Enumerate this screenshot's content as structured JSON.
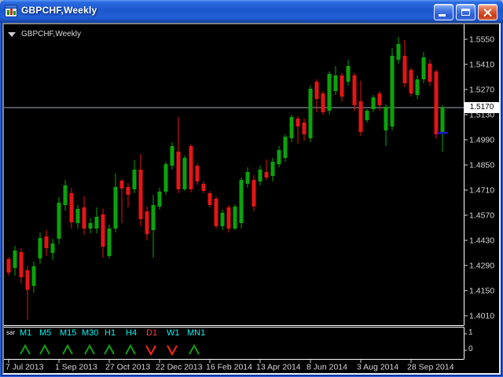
{
  "window": {
    "title": "GBPCHF,Weekly",
    "controls": [
      {
        "name": "minimize"
      },
      {
        "name": "maximize"
      },
      {
        "name": "close"
      }
    ]
  },
  "chart": {
    "label": "GBPCHF,Weekly",
    "current_price_label": "1.5170"
  },
  "indicator": {
    "label": "sar",
    "scale_top": "1",
    "scale_bottom": "0",
    "items": [
      {
        "label": "M1",
        "signal": "up"
      },
      {
        "label": "M5",
        "signal": "up"
      },
      {
        "label": "M15",
        "signal": "up"
      },
      {
        "label": "M30",
        "signal": "up"
      },
      {
        "label": "H1",
        "signal": "up"
      },
      {
        "label": "H4",
        "signal": "up"
      },
      {
        "label": "D1",
        "signal": "down",
        "label_color": "#ff3c3c"
      },
      {
        "label": "W1",
        "signal": "down"
      },
      {
        "label": "MN1",
        "signal": "up"
      }
    ]
  },
  "colors": {
    "bull": "#0aa30a",
    "bear": "#e41515",
    "arrow_up": "#149b14",
    "arrow_down": "#ff2424",
    "tf_label": "#00f2f2",
    "axis_text": "#d6d6d6",
    "frame": "#ffffff",
    "price_line": "#9fa8b4",
    "background": "#000000",
    "current_price_bg": "#ffffff",
    "titlebar_blue": "#1c57cc",
    "close_button_red": "#c63c16"
  },
  "chart_data": {
    "type": "candlestick",
    "title": "GBPCHF Weekly",
    "symbol": "GBPCHF",
    "period": "Weekly",
    "current_price": 1.517,
    "visible_price_range": [
      1.396,
      1.563
    ],
    "y_tick_step": 0.014,
    "y_ticks": [
      "1.5550",
      "1.5410",
      "1.5270",
      "1.5130",
      "1.4990",
      "1.4850",
      "1.4710",
      "1.4570",
      "1.4430",
      "1.4290",
      "1.4150",
      "1.4010"
    ],
    "x_tick_dates": [
      "7 Jul 2013",
      "1 Sep 2013",
      "27 Oct 2013",
      "22 Dec 2013",
      "16 Feb 2014",
      "13 Apr 2014",
      "8 Jun 2014",
      "3 Aug 2014",
      "28 Sep 2014"
    ],
    "indicator_pane": {
      "name": "sar",
      "scale": [
        1,
        0
      ],
      "signals": [
        "up",
        "up",
        "up",
        "up",
        "up",
        "up",
        "down",
        "down",
        "up"
      ]
    },
    "marker": {
      "type": "dash",
      "color": "#1717d1",
      "price": 1.5029
    },
    "candles": [
      [
        1.4325,
        1.4338,
        1.4233,
        1.4251
      ],
      [
        1.4277,
        1.4399,
        1.4233,
        1.4373
      ],
      [
        1.4364,
        1.4386,
        1.4189,
        1.4224
      ],
      [
        1.4264,
        1.4286,
        1.3988,
        1.4154
      ],
      [
        1.4176,
        1.4312,
        1.4137,
        1.4286
      ],
      [
        1.4329,
        1.4474,
        1.4299,
        1.4443
      ],
      [
        1.4452,
        1.4487,
        1.4343,
        1.4386
      ],
      [
        1.436,
        1.4439,
        1.4321,
        1.4413
      ],
      [
        1.4439,
        1.4671,
        1.4408,
        1.464
      ],
      [
        1.4627,
        1.4767,
        1.4596,
        1.4736
      ],
      [
        1.4693,
        1.4723,
        1.4496,
        1.4531
      ],
      [
        1.4526,
        1.4627,
        1.4496,
        1.4605
      ],
      [
        1.4614,
        1.4675,
        1.4461,
        1.4496
      ],
      [
        1.4496,
        1.4553,
        1.4469,
        1.4526
      ],
      [
        1.4496,
        1.4614,
        1.4469,
        1.4561
      ],
      [
        1.4574,
        1.4605,
        1.4334,
        1.4395
      ],
      [
        1.4343,
        1.4518,
        1.4329,
        1.4496
      ],
      [
        1.4496,
        1.4802,
        1.4474,
        1.4728
      ],
      [
        1.4763,
        1.4771,
        1.4526,
        1.4719
      ],
      [
        1.4728,
        1.4749,
        1.4614,
        1.4684
      ],
      [
        1.4714,
        1.4876,
        1.4693,
        1.4824
      ],
      [
        1.4824,
        1.4911,
        1.4509,
        1.4548
      ],
      [
        1.4592,
        1.4618,
        1.443,
        1.4465
      ],
      [
        1.4487,
        1.4684,
        1.4334,
        1.4627
      ],
      [
        1.4618,
        1.4723,
        1.4601,
        1.4701
      ],
      [
        1.4701,
        1.4868,
        1.4684,
        1.4854
      ],
      [
        1.4846,
        1.4977,
        1.4824,
        1.4955
      ],
      [
        1.4924,
        1.5117,
        1.4693,
        1.4714
      ],
      [
        1.4714,
        1.4902,
        1.4706,
        1.4889
      ],
      [
        1.4955,
        1.4964,
        1.4697,
        1.4714
      ],
      [
        1.4846,
        1.4859,
        1.4741,
        1.4758
      ],
      [
        1.4745,
        1.4758,
        1.4693,
        1.4706
      ],
      [
        1.4693,
        1.4706,
        1.4614,
        1.4627
      ],
      [
        1.4662,
        1.4675,
        1.4496,
        1.4509
      ],
      [
        1.4509,
        1.4601,
        1.4487,
        1.4583
      ],
      [
        1.4614,
        1.4627,
        1.4474,
        1.4496
      ],
      [
        1.4496,
        1.4628,
        1.4487,
        1.4618
      ],
      [
        1.4526,
        1.478,
        1.4496,
        1.4767
      ],
      [
        1.4745,
        1.4837,
        1.4723,
        1.4811
      ],
      [
        1.4767,
        1.4793,
        1.4592,
        1.4618
      ],
      [
        1.4758,
        1.4846,
        1.4736,
        1.4824
      ],
      [
        1.4811,
        1.4881,
        1.4767,
        1.478
      ],
      [
        1.4789,
        1.4889,
        1.4758,
        1.4868
      ],
      [
        1.4854,
        1.4955,
        1.4837,
        1.4933
      ],
      [
        1.4889,
        1.5021,
        1.4868,
        1.5008
      ],
      [
        1.4999,
        1.513,
        1.4977,
        1.5117
      ],
      [
        1.5108,
        1.5121,
        1.4968,
        1.5064
      ],
      [
        1.5086,
        1.5108,
        1.4986,
        1.5021
      ],
      [
        1.4999,
        1.5292,
        1.4977,
        1.5274
      ],
      [
        1.5314,
        1.5327,
        1.5143,
        1.5218
      ],
      [
        1.5248,
        1.5261,
        1.513,
        1.5143
      ],
      [
        1.5152,
        1.5371,
        1.513,
        1.5358
      ],
      [
        1.5261,
        1.5401,
        1.5239,
        1.5349
      ],
      [
        1.5349,
        1.5362,
        1.5204,
        1.5231
      ],
      [
        1.5314,
        1.5436,
        1.5292,
        1.5401
      ],
      [
        1.5349,
        1.5362,
        1.5152,
        1.5183
      ],
      [
        1.5204,
        1.5318,
        1.5012,
        1.5034
      ],
      [
        1.5099,
        1.5161,
        1.5086,
        1.5152
      ],
      [
        1.5161,
        1.5239,
        1.5143,
        1.5226
      ],
      [
        1.5248,
        1.5261,
        1.5152,
        1.5183
      ],
      [
        1.5043,
        1.5187,
        1.4955,
        1.5174
      ],
      [
        1.5064,
        1.5502,
        1.5043,
        1.5458
      ],
      [
        1.5436,
        1.5563,
        1.5414,
        1.5524
      ],
      [
        1.5458,
        1.5546,
        1.5283,
        1.5305
      ],
      [
        1.5379,
        1.5393,
        1.5231,
        1.5248
      ],
      [
        1.5239,
        1.5349,
        1.5218,
        1.5327
      ],
      [
        1.5327,
        1.548,
        1.5305,
        1.5449
      ],
      [
        1.5414,
        1.5436,
        1.5292,
        1.5314
      ],
      [
        1.5371,
        1.5379,
        1.4999,
        1.5021
      ],
      [
        1.5029,
        1.5183,
        1.4924,
        1.5169
      ]
    ]
  }
}
